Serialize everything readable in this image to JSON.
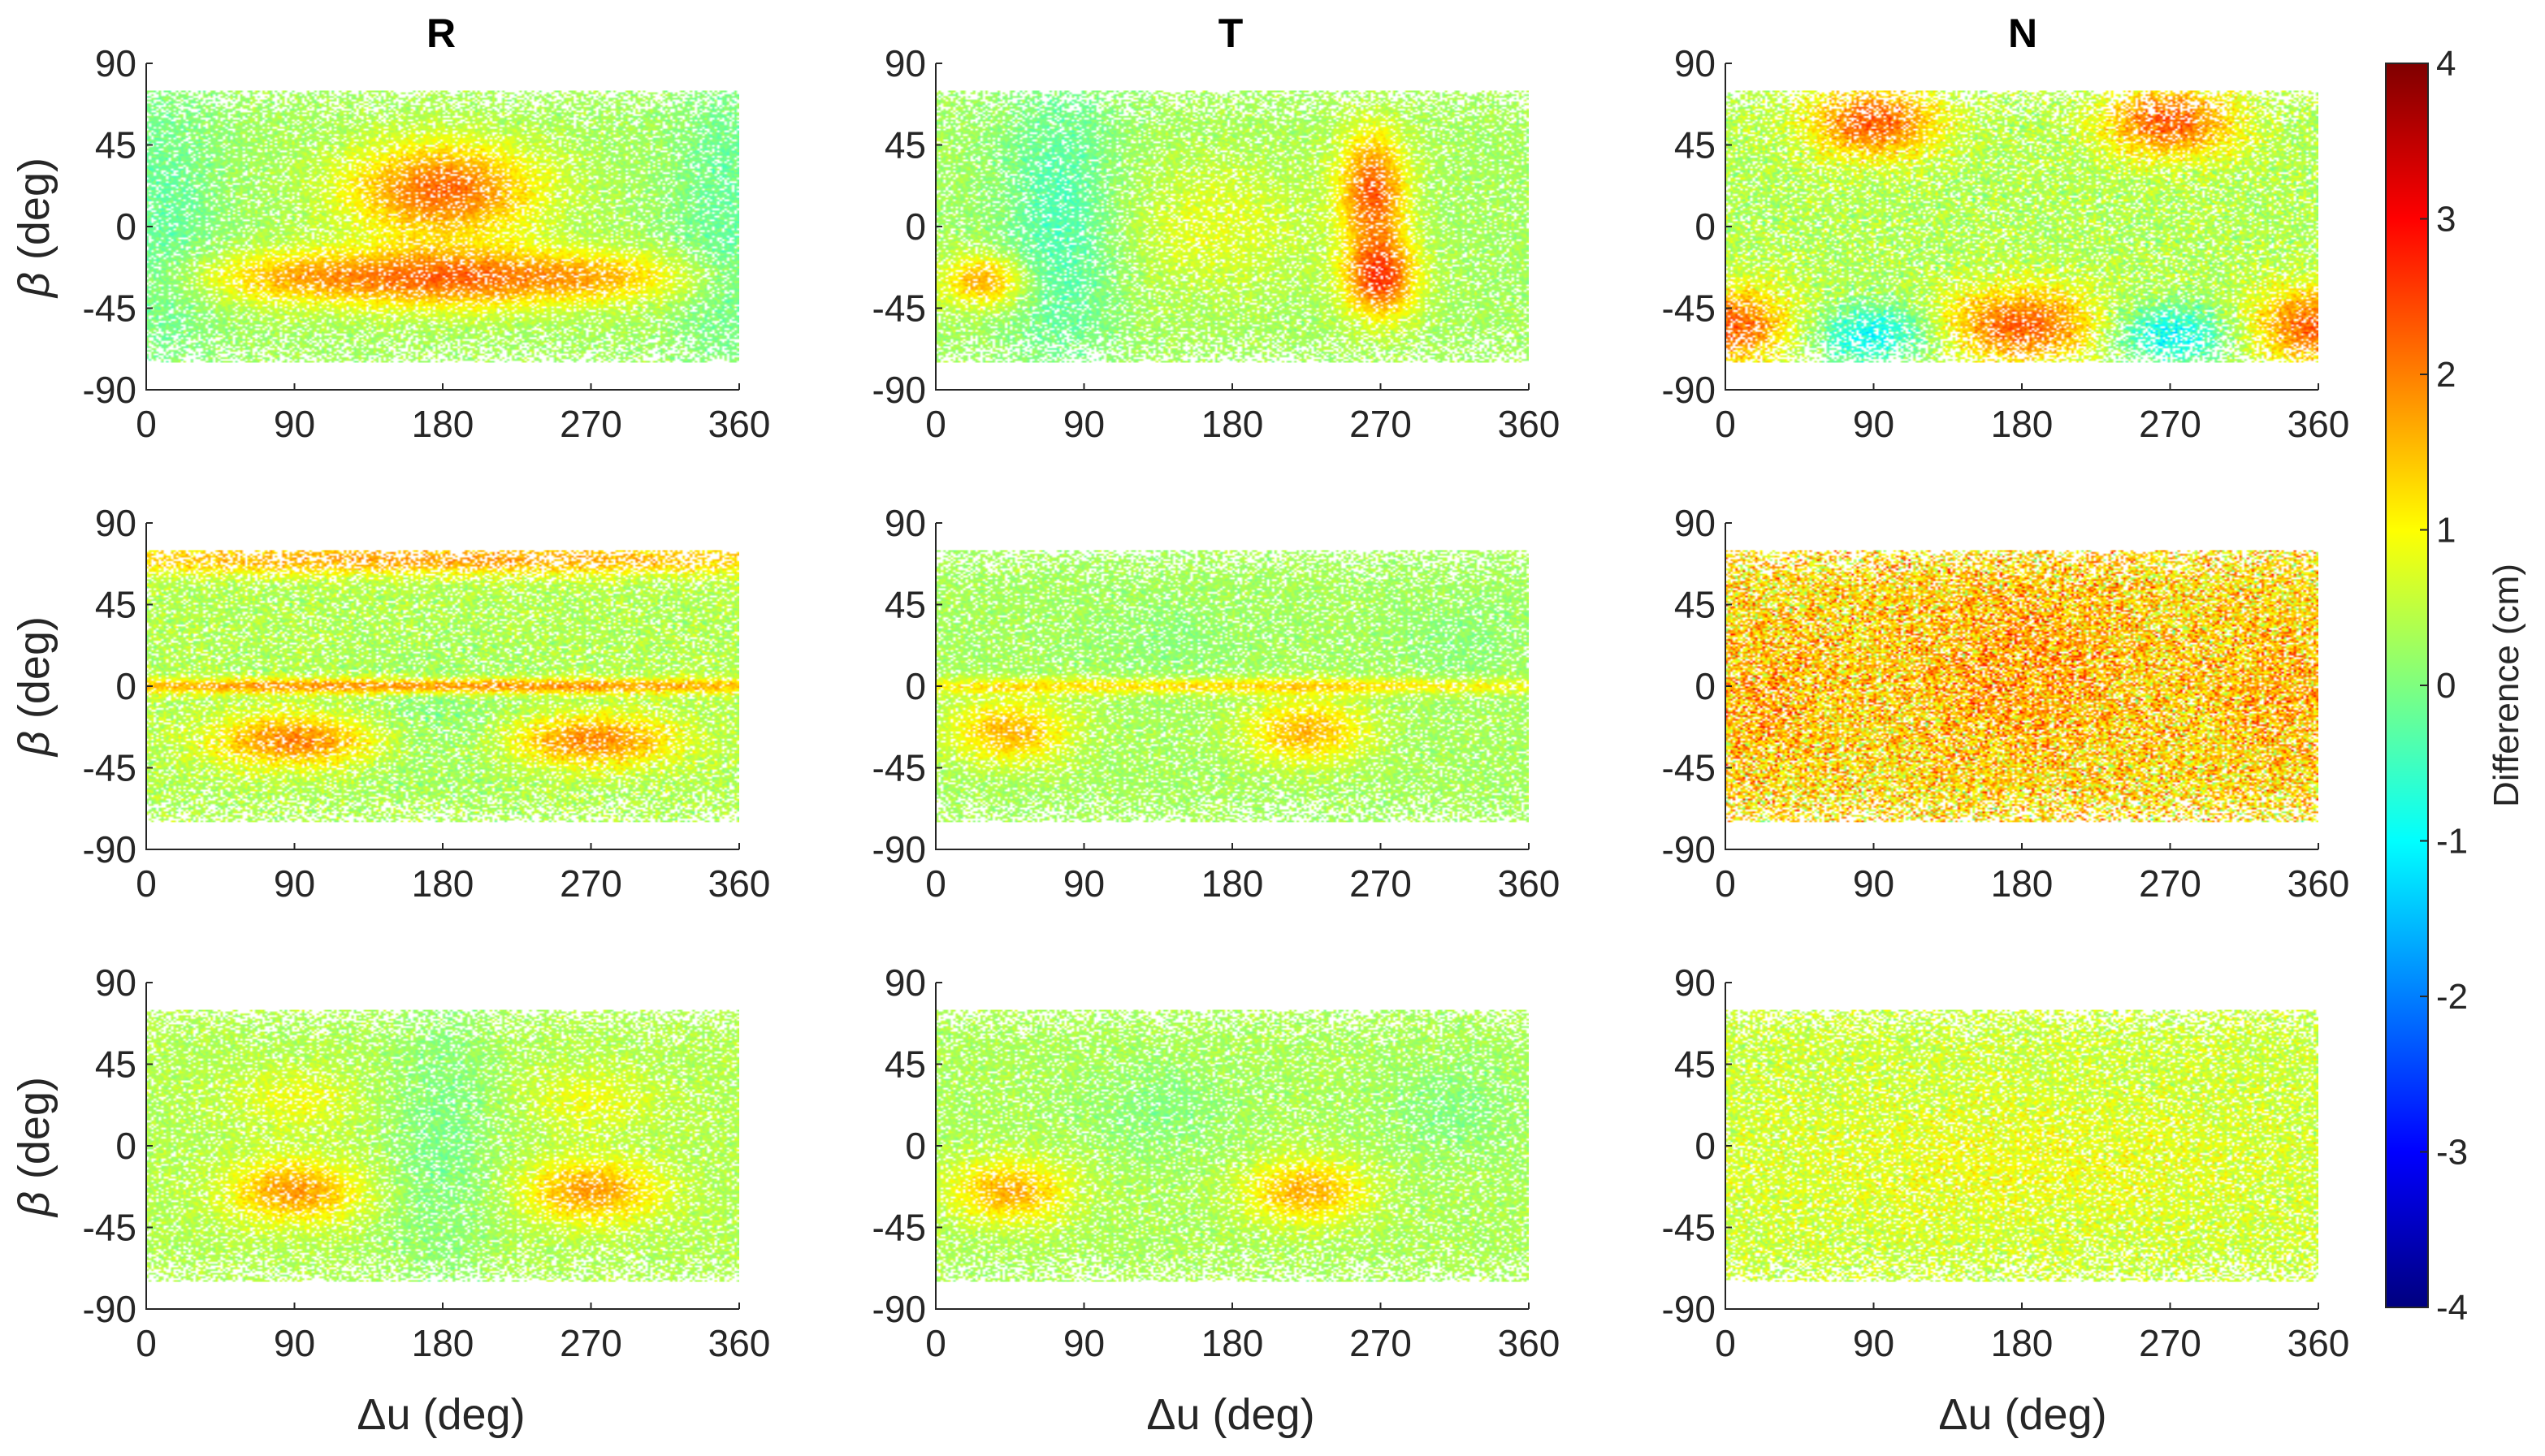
{
  "chart_data": {
    "type": "heatmap",
    "layout": "3 rows x 3 columns of scatter heatmaps sharing one colorbar",
    "column_titles": [
      "R",
      "T",
      "N"
    ],
    "xlabel": "Δu (deg)",
    "ylabel_symbol": "β",
    "ylabel_unit": " (deg)",
    "xlim": [
      0,
      360
    ],
    "ylim": [
      -90,
      90
    ],
    "xticks": [
      0,
      90,
      180,
      270,
      360
    ],
    "yticks": [
      -90,
      -45,
      0,
      45,
      90
    ],
    "data_beta_range": [
      -75,
      75
    ],
    "colorbar": {
      "label": "Difference (cm)",
      "clim": [
        -4,
        4
      ],
      "ticks": [
        -4,
        -3,
        -2,
        -1,
        0,
        1,
        2,
        3,
        4
      ],
      "colormap": [
        "#00007F",
        "#0000FF",
        "#007FFF",
        "#00FFFF",
        "#7FFF7F",
        "#FFFF00",
        "#FF7F00",
        "#FF0000",
        "#7F0000"
      ]
    },
    "panels": [
      {
        "row": 1,
        "col": "R",
        "base": 0.3,
        "noise": 0.35,
        "features": [
          {
            "u": 180,
            "b": 20,
            "su": 40,
            "sb": 18,
            "a": 1.9
          },
          {
            "u": 180,
            "b": -28,
            "su": 45,
            "sb": 12,
            "a": 1.6
          },
          {
            "u": 90,
            "b": -28,
            "su": 45,
            "sb": 10,
            "a": 1.2
          },
          {
            "u": 270,
            "b": -28,
            "su": 45,
            "sb": 10,
            "a": 1.2
          },
          {
            "u": 10,
            "b": 0,
            "su": 25,
            "sb": 70,
            "a": -0.5
          },
          {
            "u": 355,
            "b": 0,
            "su": 25,
            "sb": 70,
            "a": -0.5
          }
        ]
      },
      {
        "row": 1,
        "col": "T",
        "base": 0.3,
        "noise": 0.35,
        "features": [
          {
            "u": 265,
            "b": 20,
            "su": 14,
            "sb": 22,
            "a": 2.0
          },
          {
            "u": 270,
            "b": -28,
            "su": 15,
            "sb": 15,
            "a": 2.2
          },
          {
            "u": 75,
            "b": 0,
            "su": 25,
            "sb": 60,
            "a": -0.7
          },
          {
            "u": 30,
            "b": -30,
            "su": 18,
            "sb": 10,
            "a": 1.4
          },
          {
            "u": 170,
            "b": 0,
            "su": 40,
            "sb": 25,
            "a": 0.5
          }
        ]
      },
      {
        "row": 1,
        "col": "N",
        "base": 0.4,
        "noise": 0.55,
        "features": [
          {
            "u": 90,
            "b": 58,
            "su": 28,
            "sb": 14,
            "a": 1.9
          },
          {
            "u": 270,
            "b": 58,
            "su": 28,
            "sb": 14,
            "a": 1.9
          },
          {
            "u": 90,
            "b": -60,
            "su": 28,
            "sb": 12,
            "a": -1.4
          },
          {
            "u": 270,
            "b": -60,
            "su": 28,
            "sb": 12,
            "a": -1.4
          },
          {
            "u": 180,
            "b": -55,
            "su": 35,
            "sb": 15,
            "a": 1.9
          },
          {
            "u": 360,
            "b": -55,
            "su": 30,
            "sb": 15,
            "a": 1.9
          },
          {
            "u": 0,
            "b": -55,
            "su": 30,
            "sb": 15,
            "a": 1.9
          }
        ]
      },
      {
        "row": 2,
        "col": "R",
        "base": 0.4,
        "noise": 0.45,
        "features": [
          {
            "u": 90,
            "b": -30,
            "su": 35,
            "sb": 10,
            "a": 1.6
          },
          {
            "u": 270,
            "b": -30,
            "su": 35,
            "sb": 10,
            "a": 1.6
          },
          {
            "u": 180,
            "b": 0,
            "su": 200,
            "sb": 3,
            "a": 1.6
          },
          {
            "u": 180,
            "b": 70,
            "su": 200,
            "sb": 6,
            "a": 1.4
          },
          {
            "u": 180,
            "b": -20,
            "su": 40,
            "sb": 25,
            "a": -0.3
          }
        ]
      },
      {
        "row": 2,
        "col": "T",
        "base": 0.3,
        "noise": 0.35,
        "features": [
          {
            "u": 45,
            "b": -25,
            "su": 25,
            "sb": 12,
            "a": 1.3
          },
          {
            "u": 225,
            "b": -25,
            "su": 25,
            "sb": 12,
            "a": 1.3
          },
          {
            "u": 180,
            "b": 0,
            "su": 200,
            "sb": 3,
            "a": 1.0
          },
          {
            "u": 140,
            "b": 25,
            "su": 30,
            "sb": 15,
            "a": -0.2
          },
          {
            "u": 320,
            "b": 25,
            "su": 30,
            "sb": 15,
            "a": -0.2
          }
        ]
      },
      {
        "row": 2,
        "col": "N",
        "base": 1.2,
        "noise": 1.3,
        "features": [
          {
            "u": 180,
            "b": 10,
            "su": 60,
            "sb": 40,
            "a": 0.6
          },
          {
            "u": 20,
            "b": -5,
            "su": 30,
            "sb": 30,
            "a": 0.5
          },
          {
            "u": 340,
            "b": -5,
            "su": 30,
            "sb": 30,
            "a": 0.5
          }
        ]
      },
      {
        "row": 3,
        "col": "R",
        "base": 0.4,
        "noise": 0.35,
        "features": [
          {
            "u": 90,
            "b": -25,
            "su": 28,
            "sb": 12,
            "a": 1.4
          },
          {
            "u": 270,
            "b": -25,
            "su": 28,
            "sb": 12,
            "a": 1.4
          },
          {
            "u": 90,
            "b": 25,
            "su": 28,
            "sb": 12,
            "a": 0.5
          },
          {
            "u": 270,
            "b": 25,
            "su": 28,
            "sb": 12,
            "a": 0.5
          },
          {
            "u": 180,
            "b": 0,
            "su": 25,
            "sb": 60,
            "a": -0.4
          }
        ]
      },
      {
        "row": 3,
        "col": "T",
        "base": 0.35,
        "noise": 0.35,
        "features": [
          {
            "u": 45,
            "b": -25,
            "su": 25,
            "sb": 12,
            "a": 1.3
          },
          {
            "u": 225,
            "b": -25,
            "su": 25,
            "sb": 12,
            "a": 1.3
          },
          {
            "u": 135,
            "b": 20,
            "su": 30,
            "sb": 18,
            "a": -0.3
          },
          {
            "u": 315,
            "b": 20,
            "su": 30,
            "sb": 18,
            "a": -0.3
          }
        ]
      },
      {
        "row": 3,
        "col": "N",
        "base": 0.6,
        "noise": 0.55,
        "features": [
          {
            "u": 180,
            "b": -10,
            "su": 100,
            "sb": 25,
            "a": 0.3
          }
        ]
      }
    ]
  }
}
